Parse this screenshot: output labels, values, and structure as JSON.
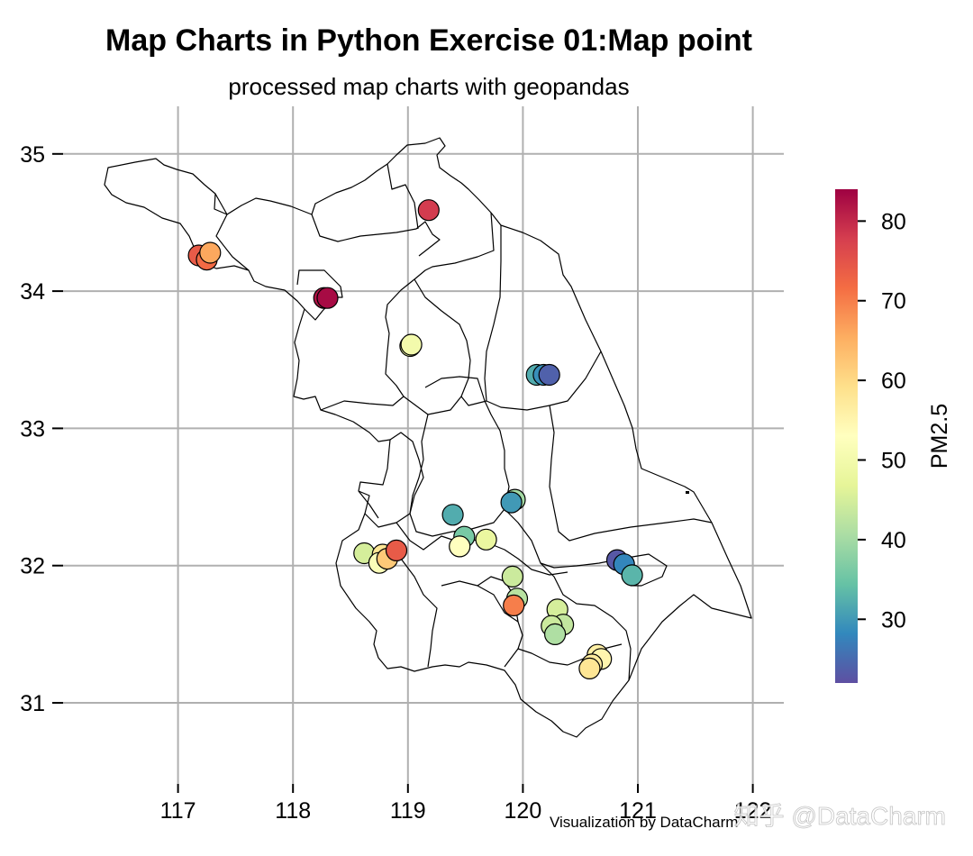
{
  "chart_data": {
    "type": "scatter",
    "title": "Map Charts in Python Exercise 01:Map point",
    "subtitle": "processed map charts with geopandas",
    "xlabel": "",
    "ylabel": "",
    "xlim": [
      116.0,
      122.25
    ],
    "ylim": [
      30.45,
      35.35
    ],
    "x_ticks": [
      117,
      118,
      119,
      120,
      121,
      122
    ],
    "y_ticks": [
      31,
      32,
      33,
      34,
      35
    ],
    "x_tick_labels": [
      "117",
      "118",
      "119",
      "120",
      "121",
      "122"
    ],
    "y_tick_labels": [
      "31",
      "32",
      "33",
      "34",
      "35"
    ],
    "grid": true,
    "colorbar": {
      "label": "PM2.5",
      "cmap": "Spectral_r",
      "vmin": 22,
      "vmax": 84,
      "ticks": [
        30,
        40,
        50,
        60,
        70,
        80
      ],
      "tick_labels": [
        "30",
        "40",
        "50",
        "60",
        "70",
        "80"
      ],
      "colors": [
        "#5e4fa2",
        "#3288bd",
        "#66c2a5",
        "#abdda4",
        "#e6f598",
        "#ffffbf",
        "#fee08b",
        "#fdae61",
        "#f46d43",
        "#d53e4f",
        "#9e0142"
      ]
    },
    "points": [
      {
        "lon": 117.18,
        "lat": 34.26,
        "pm25": 74
      },
      {
        "lon": 117.25,
        "lat": 34.23,
        "pm25": 72
      },
      {
        "lon": 117.28,
        "lat": 34.28,
        "pm25": 66
      },
      {
        "lon": 118.27,
        "lat": 33.95,
        "pm25": 82
      },
      {
        "lon": 118.3,
        "lat": 33.95,
        "pm25": 83
      },
      {
        "lon": 119.18,
        "lat": 34.59,
        "pm25": 78
      },
      {
        "lon": 119.02,
        "lat": 33.6,
        "pm25": 48
      },
      {
        "lon": 119.03,
        "lat": 33.61,
        "pm25": 50
      },
      {
        "lon": 120.12,
        "lat": 33.39,
        "pm25": 32
      },
      {
        "lon": 120.18,
        "lat": 33.39,
        "pm25": 29
      },
      {
        "lon": 120.23,
        "lat": 33.39,
        "pm25": 24
      },
      {
        "lon": 119.39,
        "lat": 32.37,
        "pm25": 32
      },
      {
        "lon": 119.93,
        "lat": 32.48,
        "pm25": 40
      },
      {
        "lon": 119.9,
        "lat": 32.46,
        "pm25": 30
      },
      {
        "lon": 119.49,
        "lat": 32.21,
        "pm25": 36
      },
      {
        "lon": 119.68,
        "lat": 32.19,
        "pm25": 48
      },
      {
        "lon": 119.45,
        "lat": 32.14,
        "pm25": 53
      },
      {
        "lon": 118.62,
        "lat": 32.09,
        "pm25": 45
      },
      {
        "lon": 118.78,
        "lat": 32.08,
        "pm25": 58
      },
      {
        "lon": 118.75,
        "lat": 32.02,
        "pm25": 52
      },
      {
        "lon": 118.82,
        "lat": 32.05,
        "pm25": 62
      },
      {
        "lon": 118.9,
        "lat": 32.11,
        "pm25": 74
      },
      {
        "lon": 120.82,
        "lat": 32.04,
        "pm25": 23
      },
      {
        "lon": 120.88,
        "lat": 32.01,
        "pm25": 28
      },
      {
        "lon": 120.95,
        "lat": 31.93,
        "pm25": 33
      },
      {
        "lon": 119.91,
        "lat": 31.92,
        "pm25": 44
      },
      {
        "lon": 119.95,
        "lat": 31.76,
        "pm25": 42
      },
      {
        "lon": 119.92,
        "lat": 31.71,
        "pm25": 70
      },
      {
        "lon": 120.3,
        "lat": 31.68,
        "pm25": 45
      },
      {
        "lon": 120.35,
        "lat": 31.57,
        "pm25": 43
      },
      {
        "lon": 120.25,
        "lat": 31.56,
        "pm25": 44
      },
      {
        "lon": 120.28,
        "lat": 31.5,
        "pm25": 41
      },
      {
        "lon": 120.65,
        "lat": 31.35,
        "pm25": 56
      },
      {
        "lon": 120.68,
        "lat": 31.32,
        "pm25": 55
      },
      {
        "lon": 120.6,
        "lat": 31.28,
        "pm25": 57
      },
      {
        "lon": 120.58,
        "lat": 31.25,
        "pm25": 58
      }
    ],
    "credit": "Visualization by DataCharm"
  },
  "watermark": "知乎 @DataCharm"
}
